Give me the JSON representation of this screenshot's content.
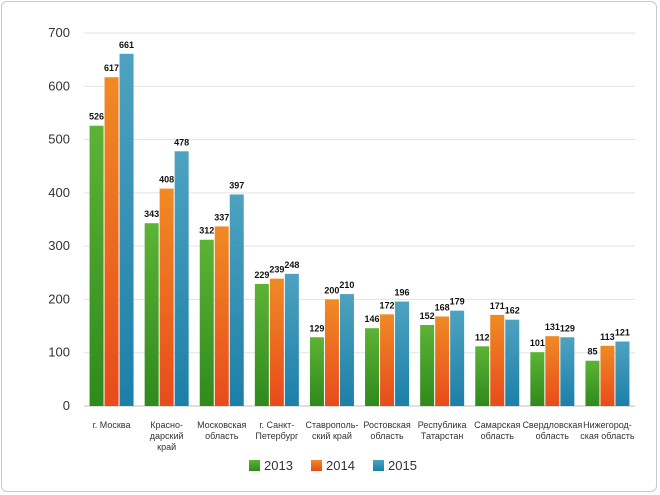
{
  "chart_data": {
    "type": "bar",
    "title": "",
    "xlabel": "",
    "ylabel": "",
    "ylim": [
      0,
      700
    ],
    "yticks": [
      0,
      100,
      200,
      300,
      400,
      500,
      600,
      700
    ],
    "grid": true,
    "legend_position": "bottom",
    "categories": [
      "г. Москва",
      "Красно-дарский край",
      "Московская область",
      "г. Санкт-Петербург",
      "Ставрополь-ский край",
      "Ростовская область",
      "Республика Татарстан",
      "Самарская область",
      "Свердловская область",
      "Нижегород-ская область"
    ],
    "category_lines": [
      [
        "г. Москва"
      ],
      [
        "Красно-",
        "дарский",
        "край"
      ],
      [
        "Московская",
        "область"
      ],
      [
        "г. Санкт-",
        "Петербург"
      ],
      [
        "Ставрополь-",
        "ский край"
      ],
      [
        "Ростовская",
        "область"
      ],
      [
        "Республика",
        "Татарстан"
      ],
      [
        "Самарская",
        "область"
      ],
      [
        "Свердловская",
        "область"
      ],
      [
        "Нижегород-",
        "ская область"
      ]
    ],
    "series": [
      {
        "name": "2013",
        "color": "#5cb335",
        "values": [
          526,
          343,
          312,
          229,
          129,
          146,
          152,
          112,
          101,
          85
        ]
      },
      {
        "name": "2014",
        "color": "#f08a24",
        "values": [
          617,
          408,
          337,
          239,
          200,
          172,
          168,
          171,
          131,
          113
        ]
      },
      {
        "name": "2015",
        "color": "#4ea2c0",
        "values": [
          661,
          478,
          397,
          248,
          210,
          196,
          179,
          162,
          129,
          121
        ]
      }
    ]
  }
}
